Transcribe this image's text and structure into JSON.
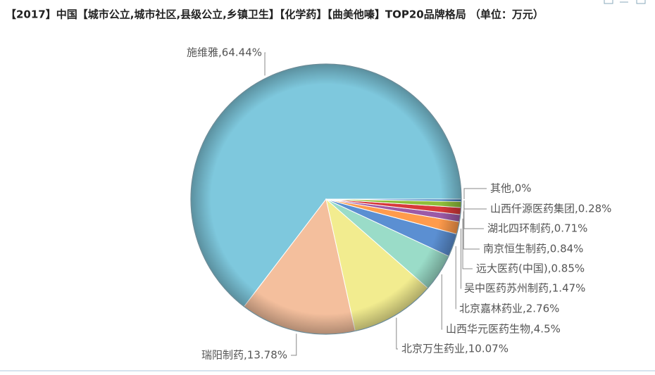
{
  "chart_data": {
    "type": "pie",
    "title": "【2017】中国【城市公立,城市社区,县级公立,乡镇卫生】【化学药】【曲美他嗪】TOP20品牌格局 （单位：万元）",
    "values": [
      64.44,
      13.78,
      10.07,
      4.5,
      2.76,
      1.47,
      0.85,
      0.84,
      0.71,
      0.28,
      0
    ],
    "value_labels": [
      "施维雅,64.44%",
      "瑞阳制药,13.78%",
      "北京万生药业,10.07%",
      "山西华元医药生物,4.5%",
      "北京嘉林药业,2.76%",
      "吴中医药苏州制药,1.47%",
      "远大医药(中国),0.85%",
      "南京恒生制药,0.84%",
      "湖北四环制药,0.71%",
      "山西仟源医药集团,0.28%",
      "其他,0%"
    ],
    "colors": [
      "#7ec8dd",
      "#f4bf9d",
      "#f2ec8f",
      "#9adcc8",
      "#5b8fd2",
      "#ff9b4c",
      "#9c5aa6",
      "#d8393b",
      "#8fbf3b",
      "#2f6fb6",
      "#b0b0b0"
    ]
  }
}
